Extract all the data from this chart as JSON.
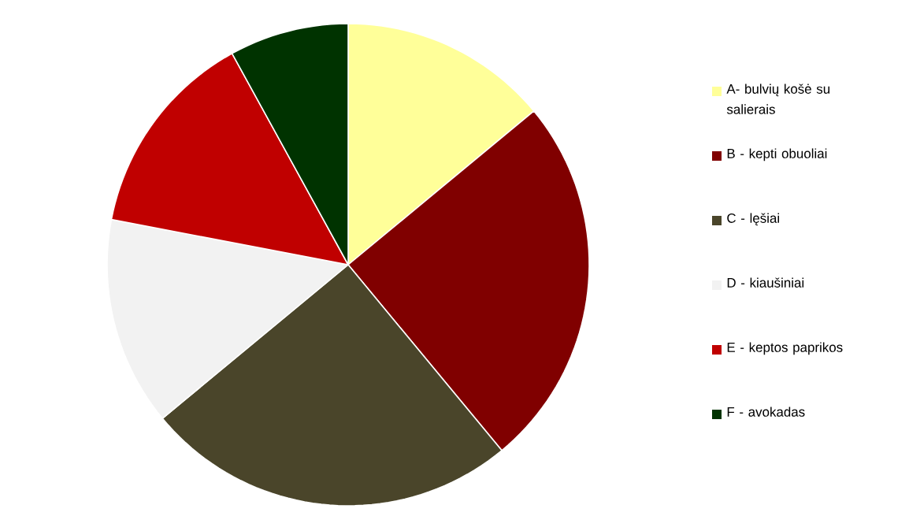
{
  "chart_data": {
    "type": "pie",
    "categories": [
      "A- bulvių košė su salierais",
      "B - kepti obuoliai",
      "C - lęšiai",
      "D - kiaušiniai",
      "E - keptos paprikos",
      "F - avokadas"
    ],
    "values": [
      14,
      25,
      25,
      14,
      14,
      8
    ],
    "colors": [
      "#ffff99",
      "#800000",
      "#4a452a",
      "#f2f2f2",
      "#c00000",
      "#003300"
    ],
    "legend": "right"
  }
}
